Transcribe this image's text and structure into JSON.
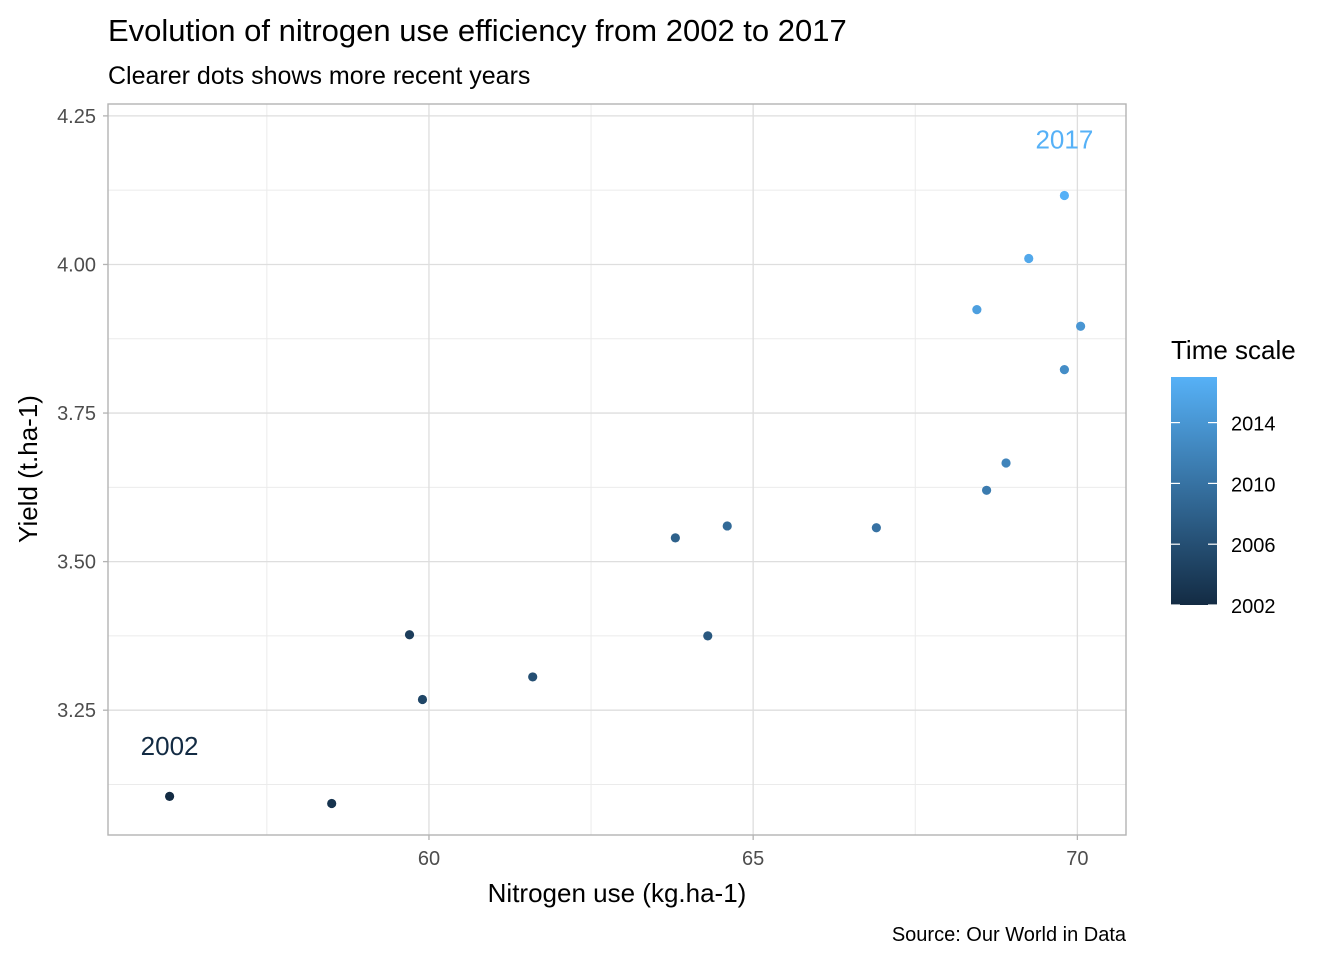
{
  "chart_data": {
    "type": "scatter",
    "title": "Evolution of nitrogen use efficiency from 2002 to 2017",
    "subtitle": "Clearer dots shows more recent years",
    "caption": "Source: Our World in Data",
    "xlabel": "Nitrogen use (kg.ha-1)",
    "ylabel": "Yield (t.ha-1)",
    "xlim": [
      55.05,
      70.75
    ],
    "ylim": [
      3.04,
      4.27
    ],
    "x_ticks": [
      60,
      65,
      70
    ],
    "y_ticks": [
      3.25,
      3.5,
      3.75,
      4.0,
      4.25
    ],
    "x_tick_labels": [
      "60",
      "65",
      "70"
    ],
    "y_tick_labels": [
      "3.25",
      "3.50",
      "3.75",
      "4.00",
      "4.25"
    ],
    "grid": true,
    "color_scale": {
      "title": "Time scale",
      "low_color": "#132B43",
      "high_color": "#56B1F7",
      "min": 2002,
      "max": 2017,
      "breaks": [
        2002,
        2006,
        2010,
        2014
      ],
      "break_labels": [
        "2002",
        "2006",
        "2010",
        "2014"
      ]
    },
    "legend_position": "right",
    "points": [
      {
        "year": 2002,
        "x": 56.0,
        "y": 3.105
      },
      {
        "year": 2003,
        "x": 58.5,
        "y": 3.093
      },
      {
        "year": 2004,
        "x": 59.7,
        "y": 3.377
      },
      {
        "year": 2005,
        "x": 59.9,
        "y": 3.268
      },
      {
        "year": 2006,
        "x": 61.6,
        "y": 3.306
      },
      {
        "year": 2007,
        "x": 64.3,
        "y": 3.375
      },
      {
        "year": 2008,
        "x": 63.8,
        "y": 3.54
      },
      {
        "year": 2009,
        "x": 64.6,
        "y": 3.56
      },
      {
        "year": 2010,
        "x": 66.9,
        "y": 3.557
      },
      {
        "year": 2011,
        "x": 68.6,
        "y": 3.62
      },
      {
        "year": 2012,
        "x": 68.9,
        "y": 3.666
      },
      {
        "year": 2013,
        "x": 69.8,
        "y": 3.823
      },
      {
        "year": 2014,
        "x": 70.05,
        "y": 3.896
      },
      {
        "year": 2015,
        "x": 68.45,
        "y": 3.924
      },
      {
        "year": 2016,
        "x": 69.25,
        "y": 4.01
      },
      {
        "year": 2017,
        "x": 69.8,
        "y": 4.116
      }
    ],
    "annotations": [
      {
        "text": "2002",
        "x": 56.0,
        "y": 3.19,
        "color": "#132B43"
      },
      {
        "text": "2017",
        "x": 69.8,
        "y": 4.21,
        "color": "#56B1F7"
      }
    ]
  }
}
